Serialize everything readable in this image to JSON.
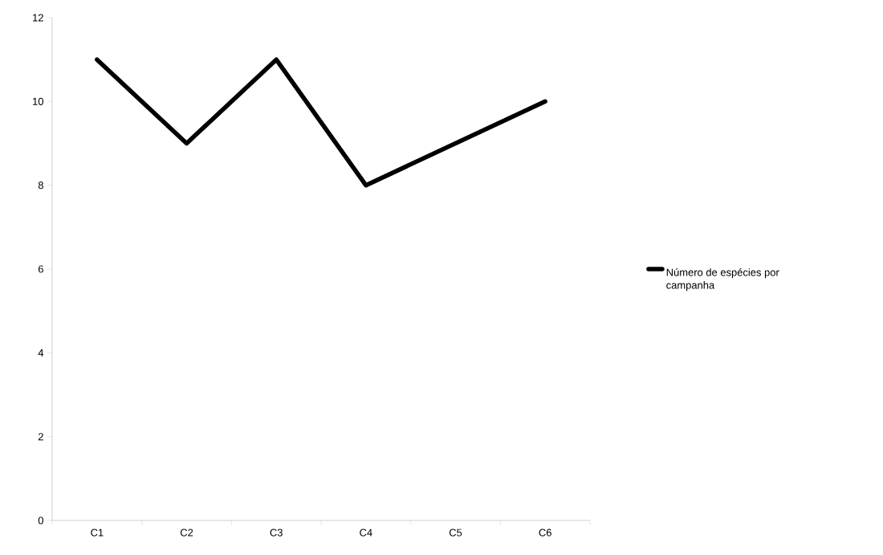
{
  "chart_data": {
    "type": "line",
    "categories": [
      "C1",
      "C2",
      "C3",
      "C4",
      "C5",
      "C6"
    ],
    "series": [
      {
        "name": "Número de espécies por campanha",
        "color": "#000000",
        "values": [
          11,
          9,
          11,
          8,
          9,
          10
        ]
      }
    ],
    "ylim": [
      0,
      12
    ],
    "yticks": [
      0,
      2,
      4,
      6,
      8,
      10,
      12
    ],
    "legend": "right"
  }
}
